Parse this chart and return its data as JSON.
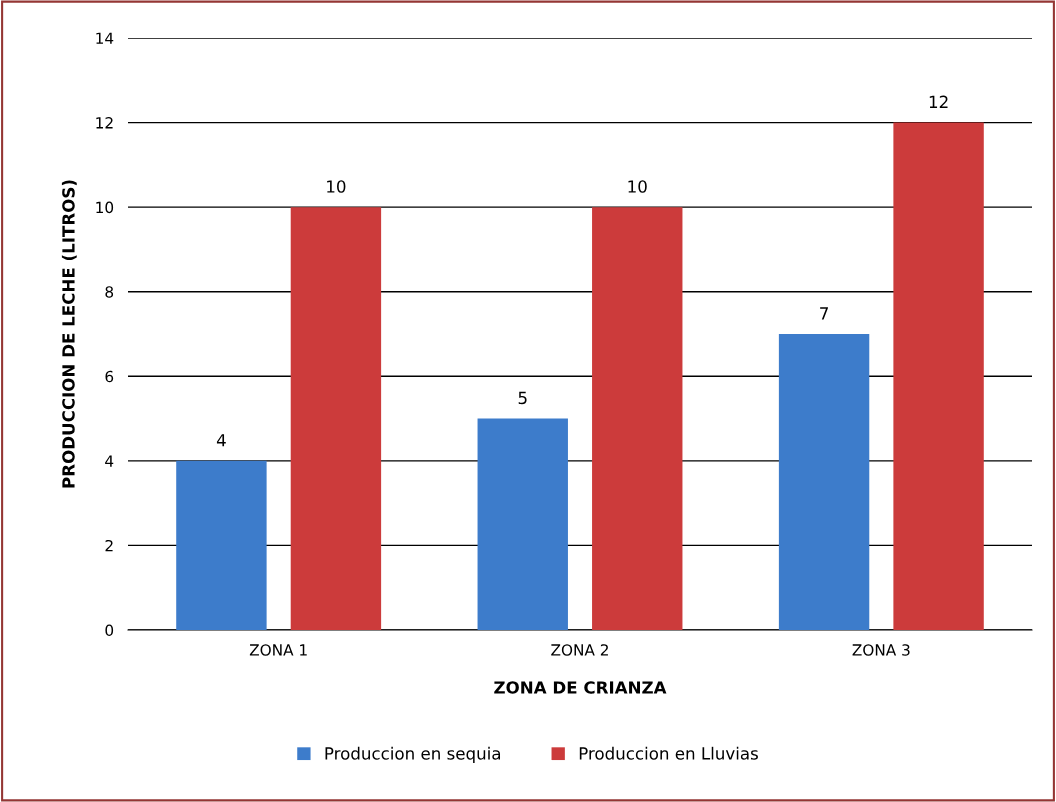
{
  "chart_data": {
    "type": "bar",
    "xlabel": "ZONA DE CRIANZA",
    "ylabel": "PRODUCCION DE LECHE (LITROS)",
    "categories": [
      "ZONA 1",
      "ZONA 2",
      "ZONA 3"
    ],
    "series": [
      {
        "name": "Produccion en sequia",
        "color": "#3d7ccb",
        "values": [
          4,
          5,
          7
        ]
      },
      {
        "name": "Produccion en Lluvias",
        "color": "#cc3b3b",
        "values": [
          10,
          10,
          12
        ]
      }
    ],
    "ylim": [
      0,
      14
    ],
    "yticks": [
      0,
      2,
      4,
      6,
      8,
      10,
      12,
      14
    ],
    "grid": "y",
    "legend": "bottom",
    "data_labels": true
  }
}
